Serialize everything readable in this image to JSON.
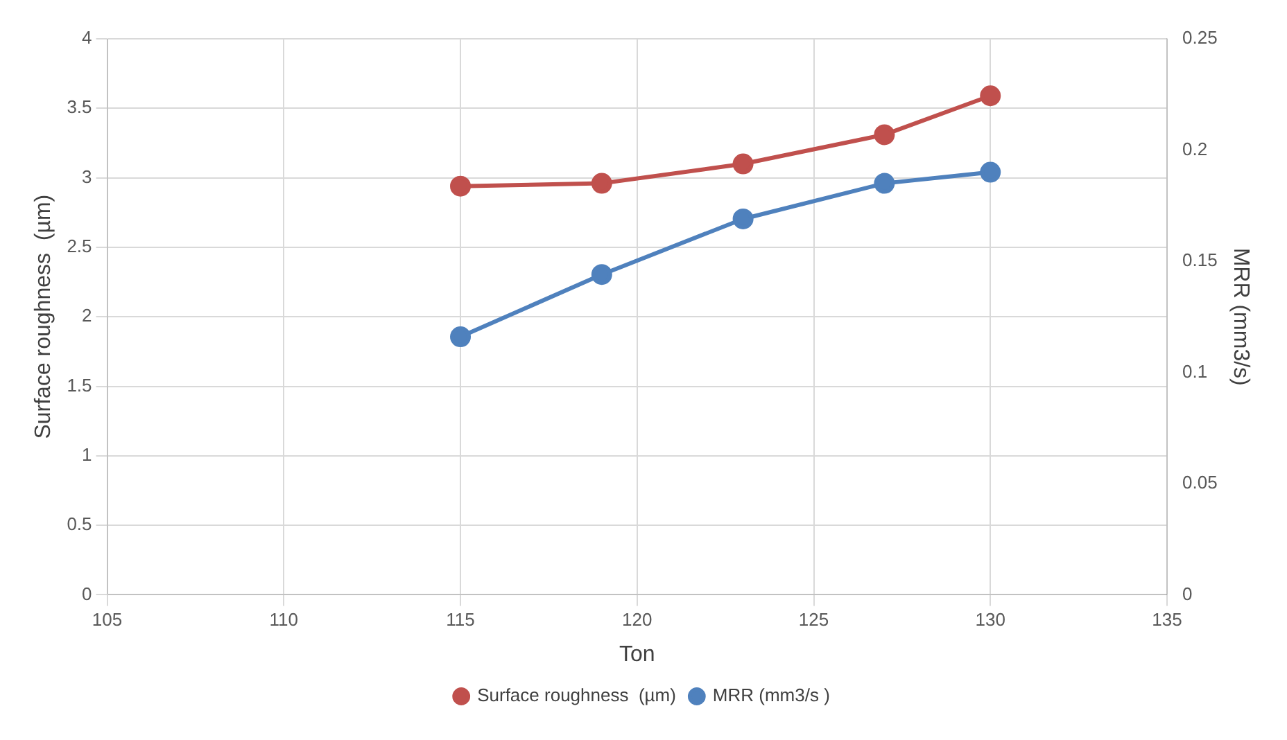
{
  "chart_data": {
    "type": "line",
    "xlabel": "Ton",
    "ylabel": "Surface roughness  (µm)",
    "y2label": "MRR (mm3/s)",
    "x": [
      115,
      119,
      123,
      127,
      130
    ],
    "series": [
      {
        "name": "Surface roughness  (µm)",
        "color": "#c0504d",
        "values": [
          2.94,
          2.96,
          3.1,
          3.31,
          3.59
        ]
      },
      {
        "name": "MRR (mm3/s )",
        "color": "#4f81bd",
        "values": [
          0.116,
          0.144,
          0.169,
          0.185,
          0.19
        ],
        "axis": "y2"
      }
    ],
    "xlim": [
      105,
      135
    ],
    "xticks": [
      105,
      110,
      115,
      120,
      125,
      130,
      135
    ],
    "ylim": [
      0,
      4
    ],
    "yticks": [
      0,
      0.5,
      1,
      1.5,
      2,
      2.5,
      3,
      3.5,
      4
    ],
    "y2lim": [
      0,
      0.25
    ],
    "y2ticks": [
      0,
      0.05,
      0.1,
      0.15,
      0.2,
      0.25
    ],
    "grid": true,
    "legend": "bottom",
    "marker": "circle"
  }
}
